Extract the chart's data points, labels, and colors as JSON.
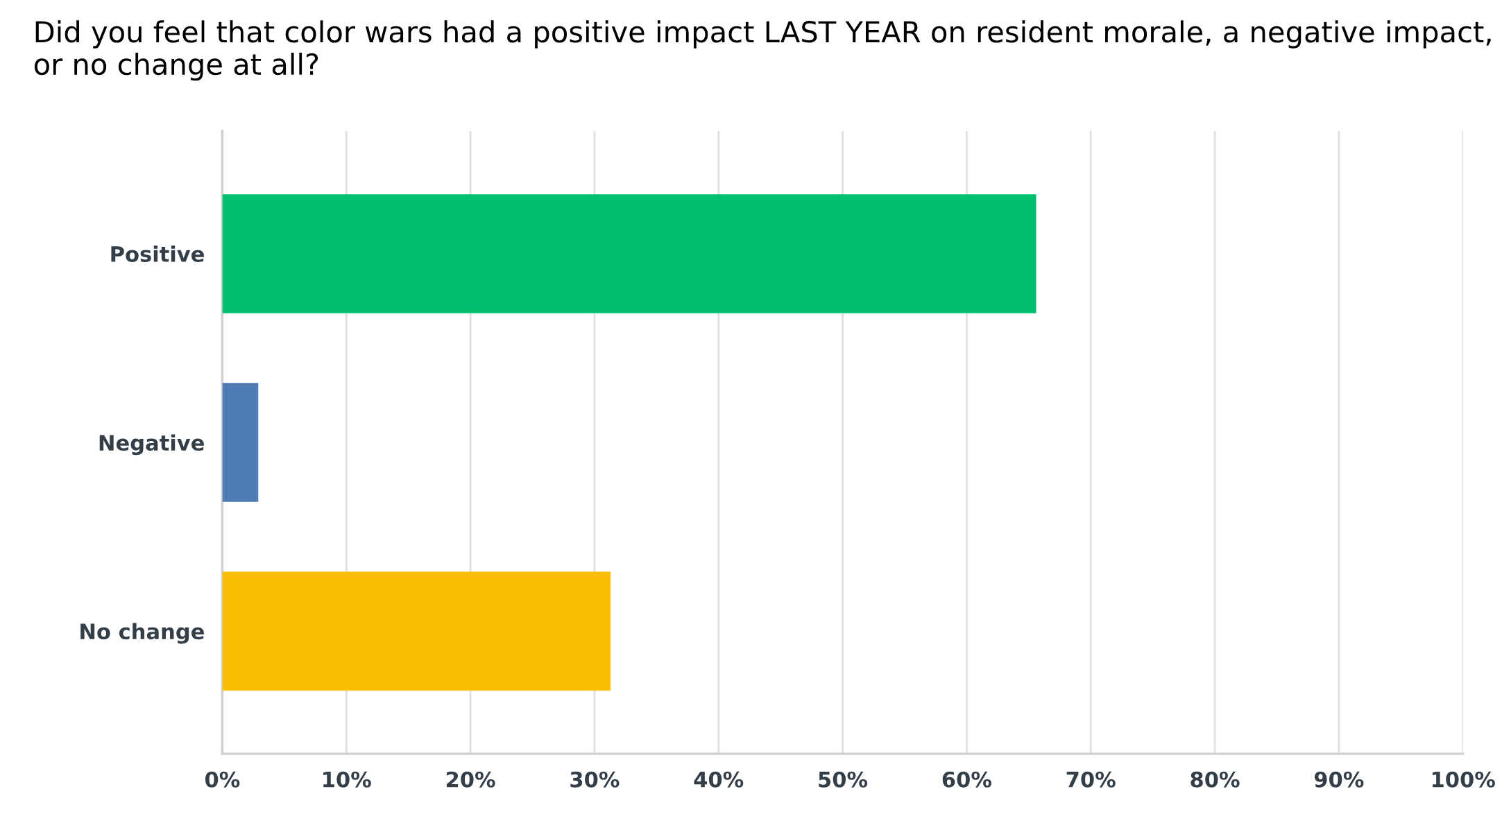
{
  "chart_data": {
    "type": "bar",
    "orientation": "horizontal",
    "title": "Did you feel that color wars had a positive impact LAST YEAR on resident morale, a negative impact, or no change at all?",
    "categories": [
      "Positive",
      "Negative",
      "No change"
    ],
    "values": [
      65.6,
      2.9,
      31.3
    ],
    "colors": [
      "#00bf6f",
      "#507cb6",
      "#f9be00"
    ],
    "xlim": [
      0,
      100
    ],
    "xticks": [
      {
        "value": 0,
        "label": "0%"
      },
      {
        "value": 10,
        "label": "10%"
      },
      {
        "value": 20,
        "label": "20%"
      },
      {
        "value": 30,
        "label": "30%"
      },
      {
        "value": 40,
        "label": "40%"
      },
      {
        "value": 50,
        "label": "50%"
      },
      {
        "value": 60,
        "label": "60%"
      },
      {
        "value": 70,
        "label": "70%"
      },
      {
        "value": 80,
        "label": "80%"
      },
      {
        "value": 90,
        "label": "90%"
      },
      {
        "value": 100,
        "label": "100%"
      }
    ],
    "grid": "x"
  }
}
